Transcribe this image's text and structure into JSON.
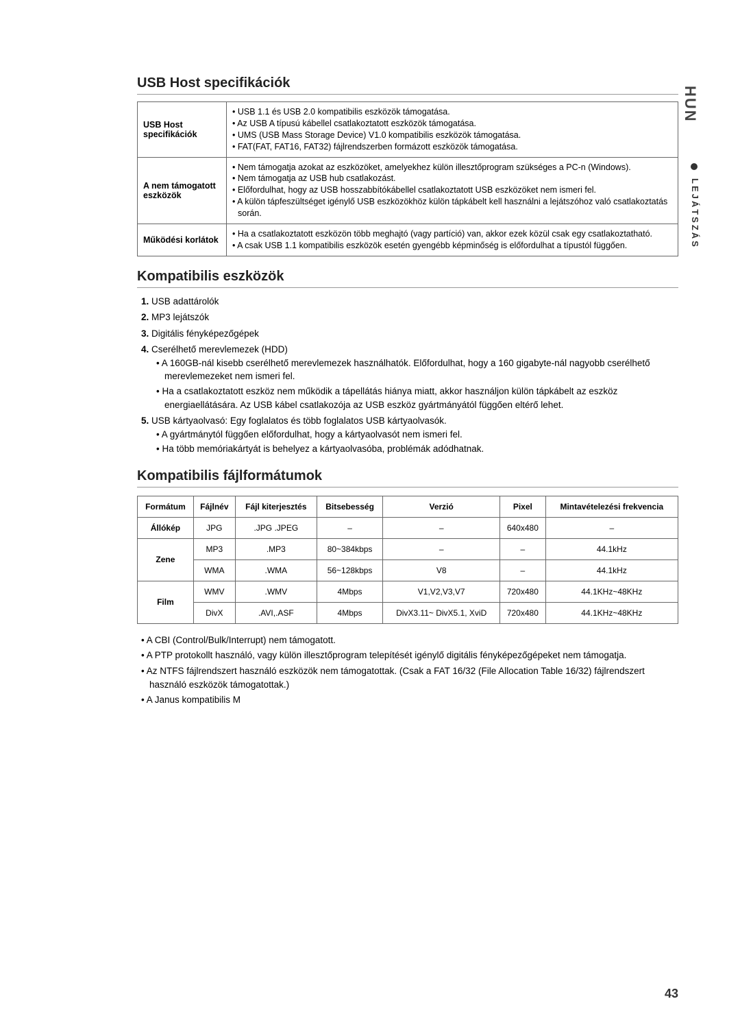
{
  "side": {
    "lang": "HUN",
    "section": "LEJÁTSZÁS"
  },
  "h": {
    "h1": "USB Host specifikációk",
    "h2": "Kompatibilis eszközök",
    "h3": "Kompatibilis fájlformátumok"
  },
  "spec": {
    "r1l": "USB Host specifikációk",
    "r1": [
      "• USB 1.1 és USB 2.0 kompatibilis eszközök támogatása.",
      "• Az USB A típusú kábellel csatlakoztatott eszközök támogatása.",
      "• UMS (USB Mass Storage Device) V1.0 kompatibilis eszközök támogatása.",
      "• FAT(FAT, FAT16, FAT32) fájlrendszerben formázott eszközök támogatása."
    ],
    "r2l": "A nem támogatott eszközök",
    "r2": [
      "• Nem támogatja azokat az eszközöket, amelyekhez külön illesztőprogram szükséges a PC-n (Windows).",
      "• Nem támogatja az USB hub csatlakozást.",
      "• Előfordulhat, hogy az USB hosszabbítókábellel csatlakoztatott USB eszközöket nem ismeri fel.",
      "• A külön tápfeszültséget igénylő USB eszközökhöz külön tápkábelt kell használni a lejátszóhoz való csatlakoztatás során."
    ],
    "r3l": "Működési korlátok",
    "r3": [
      "• Ha a csatlakoztatott eszközön több meghajtó (vagy partíció) van, akkor ezek közül csak egy csatlakoztatható.",
      "• A csak USB 1.1 kompatibilis eszközök esetén gyengébb képminőség is előfordulhat a típustól függően."
    ]
  },
  "list": {
    "i1": "USB adattárolók",
    "i2": "MP3 lejátszók",
    "i3": "Digitális fényképezőgépek",
    "i4": "Cserélhető merevlemezek (HDD)",
    "i4b": [
      "A 160GB-nál kisebb cserélhető merevlemezek használhatók. Előfordulhat, hogy a 160 gigabyte-nál nagyobb cserélhető merevlemezeket nem ismeri fel.",
      "Ha a csatlakoztatott eszköz nem működik a tápellátás hiánya miatt, akkor használjon külön tápkábelt az eszköz energiaellátására. Az USB kábel csatlakozója az USB eszköz gyártmányától függően eltérő lehet."
    ],
    "i5": "USB kártyaolvasó: Egy foglalatos és több foglalatos USB kártyaolvasók.",
    "i5b": [
      "A gyártmánytól függően előfordulhat, hogy a kártyaolvasót nem ismeri fel.",
      "Ha több memóriakártyát is behelyez a kártyaolvasóba, problémák adódhatnak."
    ]
  },
  "ft": {
    "head": [
      "Formátum",
      "Fájlnév",
      "Fájl kiterjesztés",
      "Bitsebesség",
      "Verzió",
      "Pixel",
      "Mintavételezési frekvencia"
    ],
    "rows": [
      {
        "cat": "Állókép",
        "span": 1,
        "name": "JPG",
        "ext": ".JPG .JPEG",
        "bit": "–",
        "ver": "–",
        "px": "640x480",
        "sf": "–"
      },
      {
        "cat": "Zene",
        "span": 2,
        "name": "MP3",
        "ext": ".MP3",
        "bit": "80~384kbps",
        "ver": "–",
        "px": "–",
        "sf": "44.1kHz"
      },
      {
        "cat": "",
        "span": 0,
        "name": "WMA",
        "ext": ".WMA",
        "bit": "56~128kbps",
        "ver": "V8",
        "px": "–",
        "sf": "44.1kHz"
      },
      {
        "cat": "Film",
        "span": 2,
        "name": "WMV",
        "ext": ".WMV",
        "bit": "4Mbps",
        "ver": "V1,V2,V3,V7",
        "px": "720x480",
        "sf": "44.1KHz~48KHz"
      },
      {
        "cat": "",
        "span": 0,
        "name": "DivX",
        "ext": ".AVI,.ASF",
        "bit": "4Mbps",
        "ver": "DivX3.11~ DivX5.1, XviD",
        "px": "720x480",
        "sf": "44.1KHz~48KHz"
      }
    ]
  },
  "notes": [
    "A CBI (Control/Bulk/Interrupt) nem támogatott.",
    "A PTP protokollt használó, vagy külön illesztőprogram telepítését igénylő digitális fényképezőgépeket nem támogatja.",
    "Az NTFS fájlrendszert használó eszközök nem támogatottak. (Csak a FAT 16/32 (File Allocation Table 16/32) fájlrendszert használó eszközök támogatottak.)",
    "A Janus kompatibilis M"
  ],
  "pagenum": "43"
}
